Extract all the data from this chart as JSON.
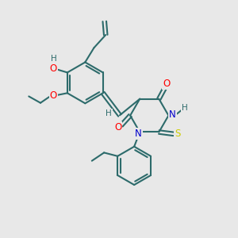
{
  "bg_color": "#e8e8e8",
  "bond_color": "#2d6b6b",
  "atom_colors": {
    "O": "#ff0000",
    "N": "#0000cc",
    "S": "#cccc00",
    "H": "#2d6b6b",
    "C": "#2d6b6b"
  },
  "bond_width": 1.5,
  "dbo": 0.07,
  "font_size": 8.5,
  "fig_size": [
    3.0,
    3.0
  ],
  "dpi": 100
}
